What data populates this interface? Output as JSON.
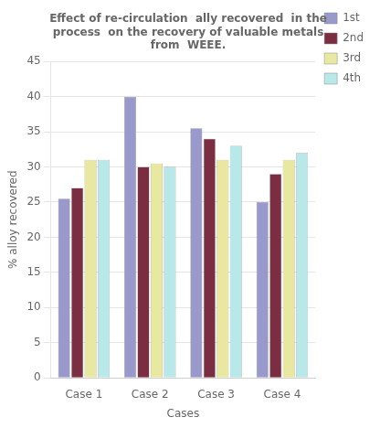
{
  "chart_data": {
    "type": "bar",
    "title": "Effect of re-circulation  ally recovered  in the\nprocess  on the recovery of valuable metals\nfrom  WEEE.",
    "xlabel": "Cases",
    "ylabel": "% alloy recovered",
    "categories": [
      "Case 1",
      "Case 2",
      "Case 3",
      "Case 4"
    ],
    "series": [
      {
        "name": "1st",
        "color": "#9999cc",
        "values": [
          25.5,
          40.0,
          35.5,
          25.0
        ]
      },
      {
        "name": "2nd",
        "color": "#7b2d42",
        "values": [
          27.0,
          30.0,
          34.0,
          29.0
        ]
      },
      {
        "name": "3rd",
        "color": "#e8e8a0",
        "values": [
          31.0,
          30.5,
          31.0,
          31.0
        ]
      },
      {
        "name": "4th",
        "color": "#b8e8e8",
        "values": [
          31.0,
          30.0,
          33.0,
          32.0
        ]
      }
    ],
    "ylim": [
      0,
      45
    ],
    "yticks": [
      0,
      5,
      10,
      15,
      20,
      25,
      30,
      35,
      40,
      45
    ],
    "grid": true,
    "legend": "upper right"
  }
}
